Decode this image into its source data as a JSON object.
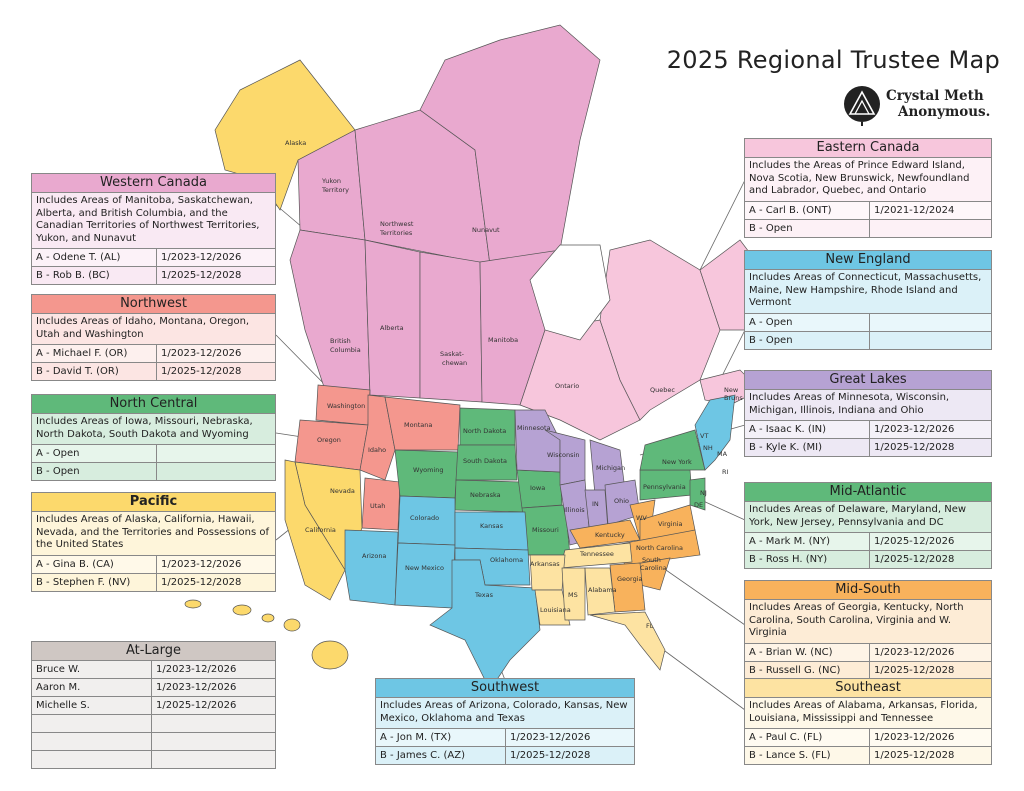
{
  "title": "2025 Regional Trustee Map",
  "logo": {
    "line1": "Crystal Meth",
    "line2": "Anonymous."
  },
  "colors": {
    "eastern_canada": "#f7c6dc",
    "western_canada": "#e9a9cf",
    "northwest": "#f4978e",
    "north_central": "#5fb97a",
    "pacific": "#fcd96c",
    "southwest": "#6ec6e4",
    "great_lakes": "#b6a2d3",
    "mid_atlantic": "#5fb97a",
    "new_england": "#6ec6e4",
    "mid_south": "#f8b25c",
    "southeast": "#fde3a2",
    "at_large": "#cfc7c3"
  },
  "regions": [
    {
      "key": "western_canada",
      "name": "Western Canada",
      "desc": "Includes Areas of Manitoba, Saskatchewan, Alberta, and British Columbia, and the Canadian Territories of Northwest Territories, Yukon, and Nunavut",
      "trustees": [
        {
          "label": "A - Odene T. (AL)",
          "term": "1/2023-12/2026"
        },
        {
          "label": "B - Rob B. (BC)",
          "term": "1/2025-12/2028"
        }
      ]
    },
    {
      "key": "northwest",
      "name": "Northwest",
      "desc": "Includes Areas of Idaho, Montana, Oregon, Utah and Washington",
      "trustees": [
        {
          "label": "A - Michael F. (OR)",
          "term": "1/2023-12/2026"
        },
        {
          "label": "B - David T. (OR)",
          "term": "1/2025-12/2028"
        }
      ]
    },
    {
      "key": "north_central",
      "name": "North Central",
      "desc": "Includes Areas of Iowa, Missouri, Nebraska, North Dakota, South Dakota and Wyoming",
      "trustees": [
        {
          "label": "A - Open",
          "term": ""
        },
        {
          "label": "B - Open",
          "term": ""
        }
      ]
    },
    {
      "key": "pacific",
      "name": "Pacific",
      "desc": "Includes Areas of Alaska, California, Hawaii, Nevada, and the Territories and Possessions of the United States",
      "trustees": [
        {
          "label": "A - Gina B. (CA)",
          "term": "1/2023-12/2026"
        },
        {
          "label": "B - Stephen F. (NV)",
          "term": "1/2025-12/2028"
        }
      ]
    },
    {
      "key": "eastern_canada",
      "name": "Eastern Canada",
      "desc": "Includes the Areas of Prince Edward Island, Nova Scotia, New Brunswick, Newfoundland and Labrador, Quebec, and Ontario",
      "trustees": [
        {
          "label": "A - Carl B. (ONT)",
          "term": "1/2021-12/2024"
        },
        {
          "label": "B - Open",
          "term": ""
        }
      ]
    },
    {
      "key": "new_england",
      "name": "New England",
      "desc": "Includes Areas of Connecticut, Massachusetts, Maine, New Hampshire, Rhode Island and Vermont",
      "trustees": [
        {
          "label": "A - Open",
          "term": ""
        },
        {
          "label": "B - Open",
          "term": ""
        }
      ]
    },
    {
      "key": "great_lakes",
      "name": "Great Lakes",
      "desc": "Includes Areas of Minnesota, Wisconsin, Michigan, Illinois, Indiana and Ohio",
      "trustees": [
        {
          "label": "A - Isaac K. (IN)",
          "term": "1/2023-12/2026"
        },
        {
          "label": "B - Kyle K. (MI)",
          "term": "1/2025-12/2028"
        }
      ]
    },
    {
      "key": "mid_atlantic",
      "name": "Mid-Atlantic",
      "desc": "Includes Areas of Delaware, Maryland, New York, New Jersey, Pennsylvania and DC",
      "trustees": [
        {
          "label": "A - Mark M. (NY)",
          "term": "1/2025-12/2026"
        },
        {
          "label": "B - Ross H. (NY)",
          "term": "1/2025-12/2028"
        }
      ]
    },
    {
      "key": "mid_south",
      "name": "Mid-South",
      "desc": "Includes Areas of Georgia, Kentucky, North Carolina, South Carolina, Virginia and W. Virginia",
      "trustees": [
        {
          "label": "A - Brian W. (NC)",
          "term": "1/2023-12/2026"
        },
        {
          "label": "B - Russell G. (NC)",
          "term": "1/2025-12/2028"
        }
      ]
    },
    {
      "key": "southeast",
      "name": "Southeast",
      "desc": "Includes Areas of Alabama, Arkansas, Florida, Louisiana, Mississippi and Tennessee",
      "trustees": [
        {
          "label": "A - Paul C. (FL)",
          "term": "1/2023-12/2026"
        },
        {
          "label": "B - Lance S. (FL)",
          "term": "1/2025-12/2028"
        }
      ]
    },
    {
      "key": "southwest",
      "name": "Southwest",
      "desc": "Includes Areas of Arizona, Colorado, Kansas, New Mexico, Oklahoma and Texas",
      "trustees": [
        {
          "label": "A - Jon M. (TX)",
          "term": "1/2023-12/2026"
        },
        {
          "label": "B - James C. (AZ)",
          "term": "1/2025-12/2028"
        }
      ]
    },
    {
      "key": "at_large",
      "name": "At-Large",
      "desc": "",
      "trustees": [
        {
          "label": "Bruce W.",
          "term": "1/2023-12/2026"
        },
        {
          "label": "Aaron M.",
          "term": "1/2023-12/2026"
        },
        {
          "label": "Michelle S.",
          "term": "1/2025-12/2026"
        },
        {
          "label": "",
          "term": ""
        },
        {
          "label": "",
          "term": ""
        },
        {
          "label": "",
          "term": ""
        }
      ]
    }
  ],
  "map_labels": {
    "alaska": "Alaska",
    "yukon": "Yukon",
    "territory": "Territory",
    "nwt1": "Northwest",
    "nwt2": "Territories",
    "nunavut": "Nunavut",
    "bc1": "British",
    "bc2": "Columbia",
    "alberta": "Alberta",
    "sask1": "Saskat-",
    "sask2": "chewan",
    "manitoba": "Manitoba",
    "ontario": "Ontario",
    "quebec": "Quebec",
    "nb1": "New",
    "nb2": "Bruns",
    "washington": "Washington",
    "oregon": "Oregon",
    "idaho": "Idaho",
    "montana": "Montana",
    "wyoming": "Wyoming",
    "utah": "Utah",
    "nevada": "Nevada",
    "california": "California",
    "colorado": "Colorado",
    "arizona": "Arizona",
    "new_mexico": "New Mexico",
    "texas": "Texas",
    "oklahoma": "Oklahoma",
    "kansas": "Kansas",
    "nebraska": "Nebraska",
    "south_dakota": "South Dakota",
    "north_dakota": "North Dakota",
    "minnesota": "Minnesota",
    "iowa": "Iowa",
    "missouri": "Missouri",
    "wisconsin": "Wisconsin",
    "illinois": "Illinois",
    "michigan": "Michigan",
    "indiana": "IN",
    "ohio": "Ohio",
    "kentucky": "Kentucky",
    "tennessee": "Tennessee",
    "arkansas": "Arkansas",
    "louisiana": "Louisiana",
    "mississippi": "MS",
    "alabama": "Alabama",
    "georgia": "Georgia",
    "florida": "FL",
    "south_carolina1": "South",
    "south_carolina2": "Carolina",
    "north_carolina": "North Carolina",
    "virginia": "Virginia",
    "west_virginia": "WV",
    "pennsylvania": "Pennsylvania",
    "new_york": "New York",
    "nj": "NJ",
    "de": "DE",
    "ma": "MA",
    "ri": "RI",
    "nh": "NH",
    "vt": "VT"
  }
}
